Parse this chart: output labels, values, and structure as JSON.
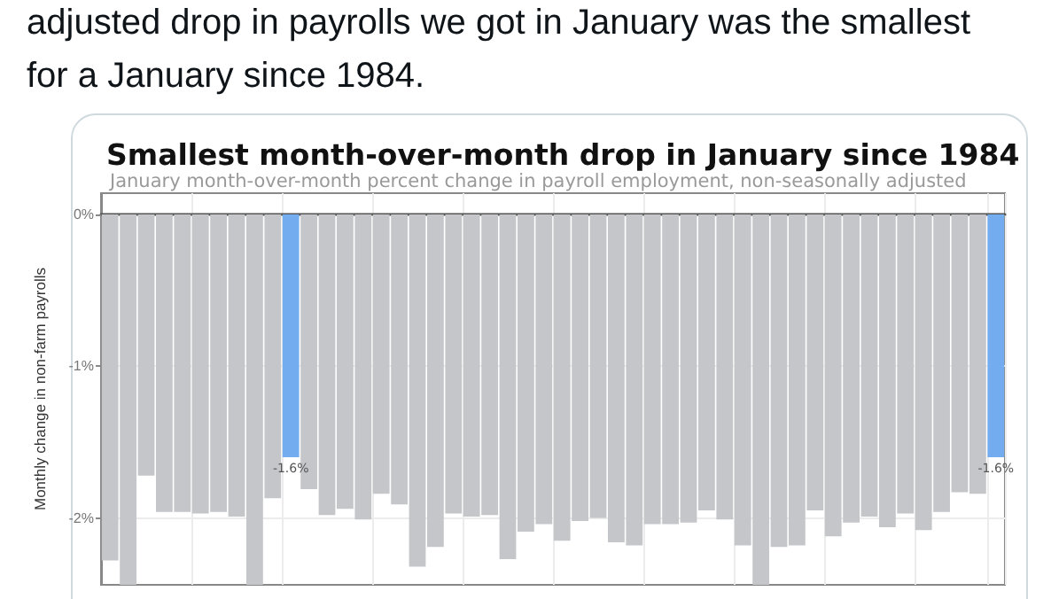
{
  "chart_data": {
    "type": "bar",
    "title": "Smallest month-over-month drop in January since 1984",
    "subtitle": "January month-over-month percent change in payroll employment, non-seasonally adjusted",
    "ylabel": "Monthly change in non-farm payrolls",
    "annotations": [
      "adjusted drop in payrolls we got in January was the smallest for a January since 1984."
    ],
    "categories": [
      null,
      null,
      null,
      null,
      null,
      null,
      null,
      null,
      null,
      null,
      null,
      null,
      null,
      null,
      null,
      null,
      null,
      null,
      null,
      null,
      null,
      null,
      null,
      null,
      null,
      null,
      null,
      null,
      null,
      null,
      null,
      null,
      null,
      null,
      null,
      null,
      null,
      null,
      null,
      null,
      null,
      null,
      null,
      null,
      null,
      null,
      null,
      null,
      null,
      null
    ],
    "values": [
      -2.28,
      -2.44,
      -1.72,
      -1.96,
      -1.96,
      -1.97,
      -1.96,
      -1.99,
      -2.44,
      -1.87,
      -1.6,
      -1.81,
      -1.98,
      -1.94,
      -2.01,
      -1.84,
      -1.91,
      -2.32,
      -2.19,
      -1.97,
      -1.99,
      -1.98,
      -2.27,
      -2.09,
      -2.04,
      -2.15,
      -2.02,
      -2.0,
      -2.16,
      -2.18,
      -2.04,
      -2.04,
      -2.03,
      -1.95,
      -2.01,
      -2.18,
      -2.44,
      -2.19,
      -2.18,
      -1.95,
      -2.12,
      -2.03,
      -1.99,
      -2.06,
      -1.97,
      -2.08,
      -1.96,
      -1.83,
      -1.84,
      -1.6
    ],
    "colors": [
      "#c4c6ca",
      "#c4c6ca",
      "#c4c6ca",
      "#c4c6ca",
      "#c4c6ca",
      "#c4c6ca",
      "#c4c6ca",
      "#c4c6ca",
      "#c4c6ca",
      "#c4c6ca",
      "#74acf0",
      "#c4c6ca",
      "#c4c6ca",
      "#c4c6ca",
      "#c4c6ca",
      "#c4c6ca",
      "#c4c6ca",
      "#c4c6ca",
      "#c4c6ca",
      "#c4c6ca",
      "#c4c6ca",
      "#c4c6ca",
      "#c4c6ca",
      "#c4c6ca",
      "#c4c6ca",
      "#c4c6ca",
      "#c4c6ca",
      "#c4c6ca",
      "#c4c6ca",
      "#c4c6ca",
      "#c4c6ca",
      "#c4c6ca",
      "#c4c6ca",
      "#c4c6ca",
      "#c4c6ca",
      "#c4c6ca",
      "#c4c6ca",
      "#c4c6ca",
      "#c4c6ca",
      "#c4c6ca",
      "#c4c6ca",
      "#c4c6ca",
      "#c4c6ca",
      "#c4c6ca",
      "#c4c6ca",
      "#c4c6ca",
      "#c4c6ca",
      "#c4c6ca",
      "#c4c6ca",
      "#74acf0"
    ],
    "value_labels": [
      null,
      null,
      null,
      null,
      null,
      null,
      null,
      null,
      null,
      null,
      "-1.6%",
      null,
      null,
      null,
      null,
      null,
      null,
      null,
      null,
      null,
      null,
      null,
      null,
      null,
      null,
      null,
      null,
      null,
      null,
      null,
      null,
      null,
      null,
      null,
      null,
      null,
      null,
      null,
      null,
      null,
      null,
      null,
      null,
      null,
      null,
      null,
      null,
      null,
      null,
      "-1.6%"
    ],
    "ylim": [
      -2.44,
      0.14
    ],
    "yticks": [
      {
        "value": 0,
        "label": "0%"
      },
      {
        "value": -1,
        "label": "-1%"
      },
      {
        "value": -2,
        "label": "-2%"
      }
    ],
    "grid": true
  }
}
